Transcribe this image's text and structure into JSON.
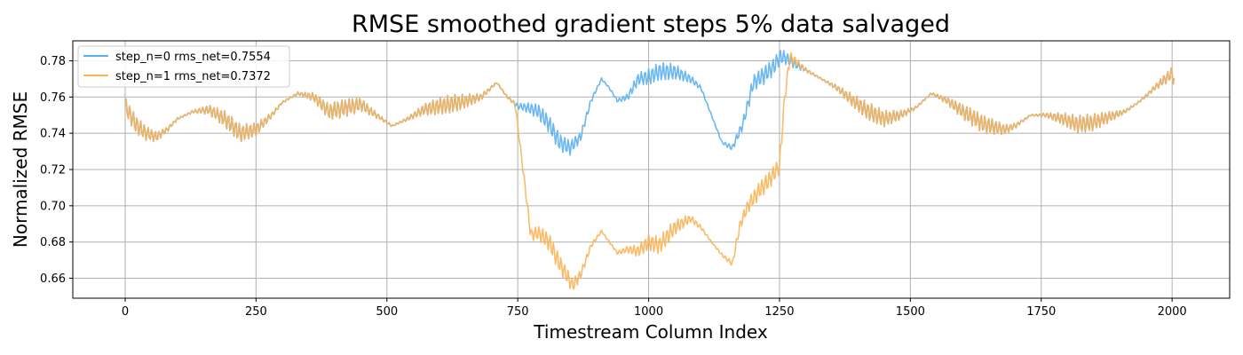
{
  "chart_data": {
    "type": "line",
    "title": "RMSE smoothed gradient steps 5% data salvaged",
    "xlabel": "Timestream Column Index",
    "ylabel": "Normalized RMSE",
    "xlim": [
      -100,
      2110
    ],
    "ylim": [
      0.649,
      0.791
    ],
    "xticks": [
      0,
      250,
      500,
      750,
      1000,
      1250,
      1500,
      1750,
      2000
    ],
    "xtick_labels": [
      "0",
      "250",
      "500",
      "750",
      "1000",
      "1250",
      "1500",
      "1750",
      "2000"
    ],
    "yticks": [
      0.66,
      0.68,
      0.7,
      0.72,
      0.74,
      0.76,
      0.78
    ],
    "ytick_labels": [
      "0.66",
      "0.68",
      "0.70",
      "0.72",
      "0.74",
      "0.76",
      "0.78"
    ],
    "grid": true,
    "legend_position": "upper-left",
    "series": [
      {
        "name": "step_n=0 rms_net=0.7554",
        "color": "#5aaff0",
        "x": [
          0,
          20,
          40,
          60,
          80,
          100,
          130,
          160,
          190,
          220,
          250,
          280,
          300,
          330,
          360,
          390,
          420,
          450,
          480,
          510,
          540,
          570,
          600,
          640,
          680,
          710,
          730,
          750,
          770,
          790,
          810,
          830,
          850,
          870,
          890,
          910,
          925,
          940,
          960,
          980,
          1000,
          1020,
          1050,
          1080,
          1100,
          1120,
          1140,
          1160,
          1180,
          1200,
          1220,
          1240,
          1250,
          1260,
          1280,
          1300,
          1330,
          1360,
          1390,
          1420,
          1450,
          1480,
          1510,
          1540,
          1570,
          1600,
          1640,
          1680,
          1700,
          1730,
          1760,
          1790,
          1820,
          1850,
          1880,
          1910,
          1940,
          1970,
          2000,
          2005
        ],
        "y": [
          0.755,
          0.745,
          0.74,
          0.738,
          0.742,
          0.748,
          0.752,
          0.753,
          0.748,
          0.74,
          0.742,
          0.75,
          0.757,
          0.762,
          0.76,
          0.752,
          0.754,
          0.756,
          0.75,
          0.744,
          0.748,
          0.753,
          0.755,
          0.757,
          0.76,
          0.768,
          0.76,
          0.755,
          0.754,
          0.752,
          0.745,
          0.735,
          0.732,
          0.738,
          0.758,
          0.77,
          0.765,
          0.758,
          0.76,
          0.77,
          0.771,
          0.774,
          0.774,
          0.77,
          0.765,
          0.75,
          0.735,
          0.732,
          0.745,
          0.768,
          0.772,
          0.777,
          0.782,
          0.782,
          0.778,
          0.775,
          0.77,
          0.765,
          0.758,
          0.752,
          0.748,
          0.75,
          0.754,
          0.762,
          0.758,
          0.752,
          0.745,
          0.742,
          0.744,
          0.75,
          0.75,
          0.748,
          0.745,
          0.746,
          0.749,
          0.752,
          0.758,
          0.766,
          0.773,
          0.768
        ],
        "noise_amplitude": 0.005
      },
      {
        "name": "step_n=1 rms_net=0.7372",
        "color": "#fbb356",
        "x": [
          0,
          20,
          40,
          60,
          80,
          100,
          130,
          160,
          190,
          220,
          250,
          280,
          300,
          330,
          360,
          390,
          420,
          450,
          480,
          510,
          540,
          570,
          600,
          640,
          680,
          710,
          730,
          745,
          760,
          775,
          790,
          810,
          830,
          855,
          870,
          890,
          910,
          925,
          940,
          960,
          980,
          1000,
          1020,
          1050,
          1080,
          1100,
          1120,
          1140,
          1160,
          1175,
          1190,
          1210,
          1230,
          1250,
          1260,
          1270,
          1280,
          1300,
          1330,
          1360,
          1390,
          1420,
          1450,
          1480,
          1510,
          1540,
          1570,
          1600,
          1640,
          1680,
          1700,
          1730,
          1760,
          1790,
          1820,
          1850,
          1880,
          1910,
          1940,
          1970,
          2000,
          2005
        ],
        "y": [
          0.755,
          0.745,
          0.74,
          0.738,
          0.742,
          0.748,
          0.752,
          0.753,
          0.748,
          0.74,
          0.742,
          0.75,
          0.757,
          0.762,
          0.76,
          0.752,
          0.754,
          0.756,
          0.75,
          0.744,
          0.748,
          0.753,
          0.755,
          0.757,
          0.76,
          0.768,
          0.76,
          0.756,
          0.72,
          0.684,
          0.685,
          0.68,
          0.668,
          0.656,
          0.662,
          0.678,
          0.686,
          0.68,
          0.674,
          0.676,
          0.675,
          0.68,
          0.678,
          0.688,
          0.693,
          0.688,
          0.68,
          0.673,
          0.668,
          0.69,
          0.7,
          0.708,
          0.714,
          0.722,
          0.76,
          0.782,
          0.78,
          0.775,
          0.77,
          0.765,
          0.758,
          0.752,
          0.748,
          0.75,
          0.754,
          0.762,
          0.758,
          0.752,
          0.745,
          0.742,
          0.744,
          0.75,
          0.75,
          0.748,
          0.745,
          0.746,
          0.749,
          0.752,
          0.758,
          0.766,
          0.773,
          0.768
        ],
        "noise_amplitude": 0.005
      }
    ]
  }
}
